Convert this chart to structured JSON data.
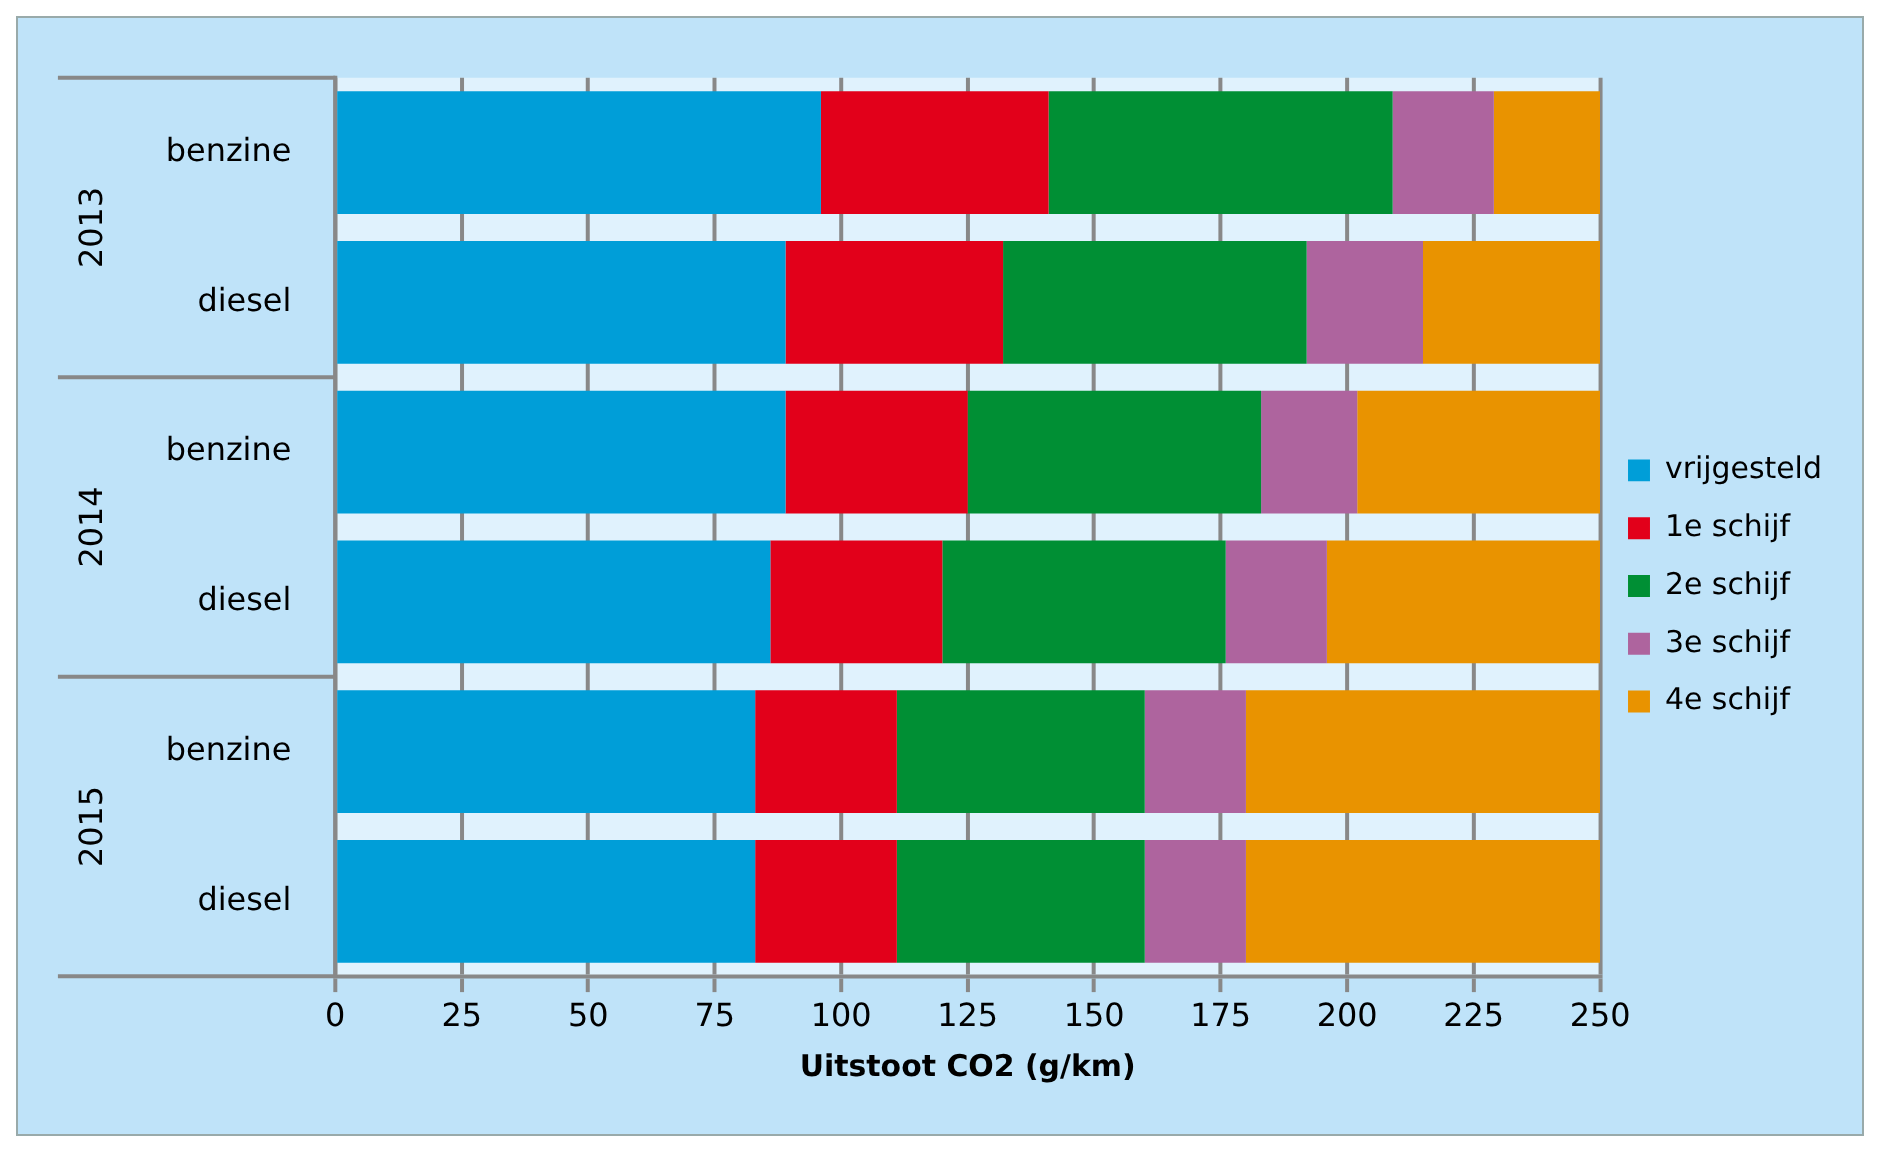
{
  "chart_data": {
    "type": "bar",
    "orientation": "horizontal",
    "stacked": true,
    "categories": [
      "benzine",
      "diesel",
      "benzine",
      "diesel",
      "benzine",
      "diesel"
    ],
    "series": [
      {
        "name": "vrijgesteld",
        "color": "#009ed8",
        "values": [
          96,
          89,
          89,
          86,
          83,
          83
        ]
      },
      {
        "name": "1e schijf",
        "color": "#e2001a",
        "values": [
          45,
          43,
          36,
          34,
          28,
          28
        ]
      },
      {
        "name": "2e schijf",
        "color": "#008f34",
        "values": [
          68,
          60,
          58,
          56,
          49,
          49
        ]
      },
      {
        "name": "3e schijf",
        "color": "#ae649e",
        "values": [
          20,
          23,
          19,
          20,
          20,
          20
        ]
      },
      {
        "name": "4e schijf",
        "color": "#e99300",
        "values": [
          21,
          35,
          48,
          54,
          70,
          70
        ]
      }
    ],
    "xlim": [
      0,
      250
    ],
    "xticks": [
      0,
      25,
      50,
      75,
      100,
      125,
      150,
      175,
      200,
      225,
      250
    ],
    "xlabel": "Uitstoot CO2 (g/km)",
    "annotations": [
      "2013",
      "2014",
      "2015"
    ],
    "grid": "x",
    "legend": "right"
  }
}
